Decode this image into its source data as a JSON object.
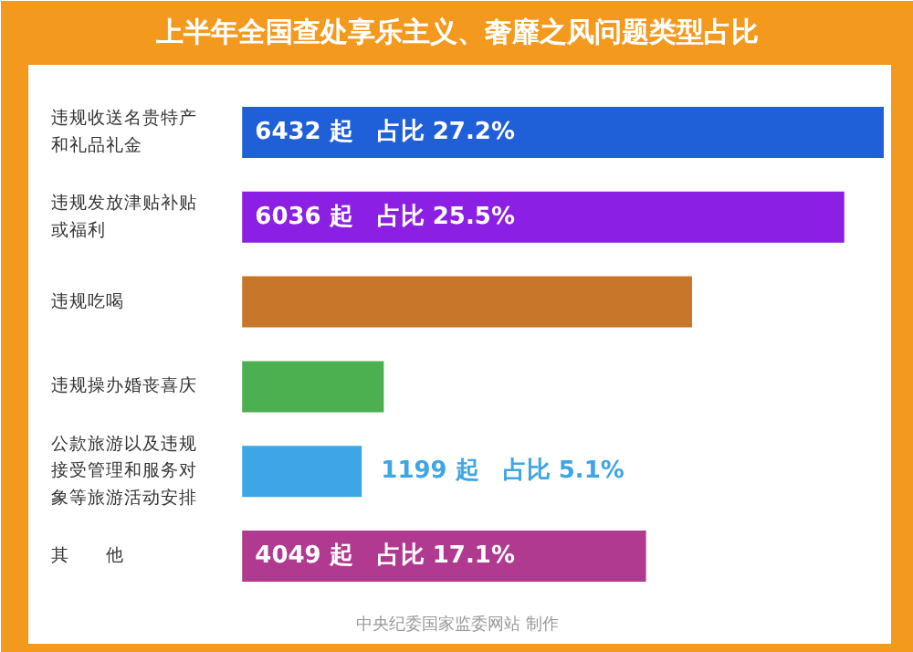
{
  "chart_data": {
    "type": "bar",
    "orientation": "horizontal",
    "title": "上半年全国查处享乐主义、奢靡之风问题类型占比",
    "categories": [
      "违规收送名贵特产和礼品礼金",
      "违规发放津贴补贴或福利",
      "违规吃喝",
      "违规操办婚丧喜庆",
      "公款旅游以及违规接受管理和服务对象等旅游活动安排",
      "其　　他"
    ],
    "values": [
      6432,
      6036,
      4510,
      1420,
      1199,
      4049
    ],
    "colors": [
      "#1f5fd8",
      "#8b1fe3",
      "#c8762a",
      "#4caf50",
      "#3ea6e6",
      "#b03a8f"
    ],
    "value_labels": [
      "6432 起　占比 27.2%",
      "6036 起　占比 25.5%",
      null,
      null,
      "1199 起　占比 5.1%",
      "4049 起　占比 17.1%"
    ],
    "annotations": [
      "中央纪委国家监委网站 制作"
    ]
  }
}
